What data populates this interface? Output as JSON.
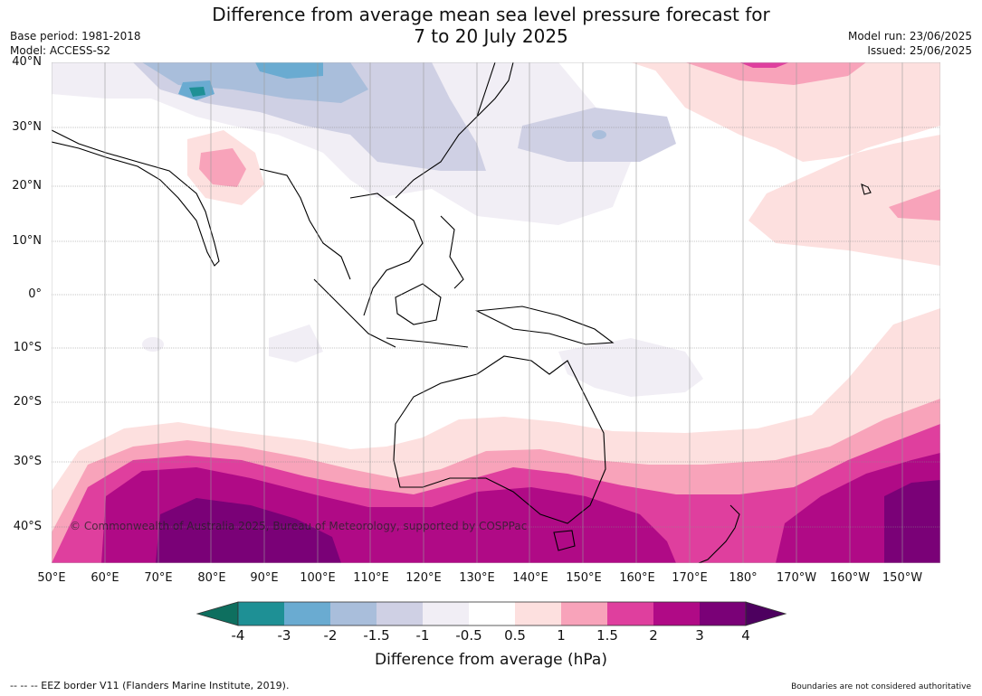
{
  "title_line1": "Difference from average mean sea level pressure forecast for",
  "title_line2": "7 to 20 July 2025",
  "base_period": "Base period: 1981-2018",
  "model": "Model: ACCESS-S2",
  "model_run": "Model run: 23/06/2025",
  "issued": "Issued: 25/06/2025",
  "copyright": "© Commonwealth of Australia 2025, Bureau of Meteorology, supported by COSPPac",
  "lat_labels": [
    "40°N",
    "30°N",
    "20°N",
    "10°N",
    "0°",
    "10°S",
    "20°S",
    "30°S",
    "40°S"
  ],
  "lon_labels": [
    "50°E",
    "60°E",
    "70°E",
    "80°E",
    "90°E",
    "100°E",
    "110°E",
    "120°E",
    "130°E",
    "140°E",
    "150°E",
    "160°E",
    "170°E",
    "180°",
    "170°W",
    "160°W",
    "150°W"
  ],
  "colorbar": {
    "ticks": [
      "-4",
      "-3",
      "-2",
      "-1.5",
      "-1",
      "-0.5",
      "0.5",
      "1",
      "1.5",
      "2",
      "3",
      "4"
    ],
    "colors": [
      "#0e6f5f",
      "#1e9095",
      "#6aabd1",
      "#a9bedb",
      "#cfd0e4",
      "#f1eef5",
      "#ffffff",
      "#fde0df",
      "#f8a3ba",
      "#df3f9e",
      "#b00a86",
      "#7a0177",
      "#4d005f"
    ],
    "label": "Difference from average (hPa)"
  },
  "footer_left": "--  --  -- EEZ border V11 (Flanders Marine Institute, 2019).",
  "footer_right": "Boundaries are not considered authoritative"
}
